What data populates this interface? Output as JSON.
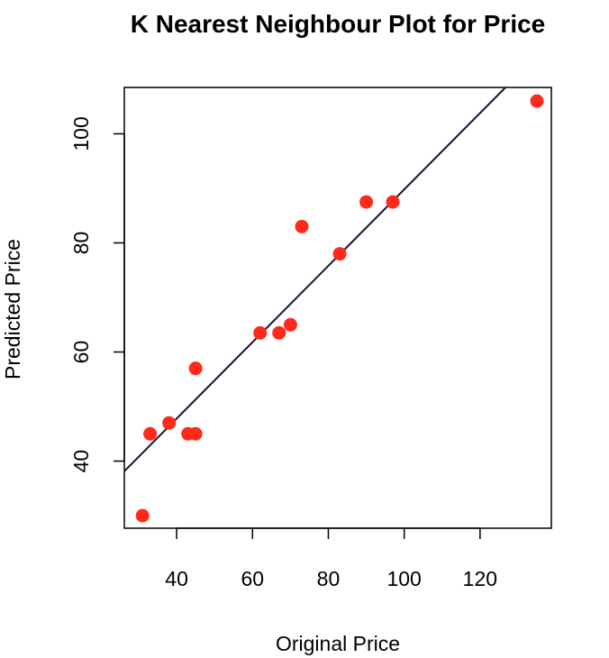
{
  "chart_data": {
    "type": "scatter",
    "title": "K Nearest Neighbour Plot for Price",
    "xlabel": "Original Price",
    "ylabel": "Predicted Price",
    "xlim": [
      26.2,
      138.8
    ],
    "ylim": [
      27.7,
      108.5
    ],
    "x_ticks": [
      40,
      60,
      80,
      100,
      120
    ],
    "y_ticks": [
      40,
      60,
      80,
      100
    ],
    "x_tick_labels": [
      "40",
      "60",
      "80",
      "100",
      "120"
    ],
    "y_tick_labels": [
      "40",
      "60",
      "80",
      "100"
    ],
    "grid": false,
    "legend": "none",
    "point_color": "#ff2a1a",
    "line_color": "#1a1033",
    "points": [
      {
        "x": 31,
        "y": 30
      },
      {
        "x": 33,
        "y": 45
      },
      {
        "x": 38,
        "y": 47
      },
      {
        "x": 43,
        "y": 45
      },
      {
        "x": 45,
        "y": 45
      },
      {
        "x": 45,
        "y": 57
      },
      {
        "x": 62,
        "y": 63.5
      },
      {
        "x": 67,
        "y": 63.5
      },
      {
        "x": 70,
        "y": 65
      },
      {
        "x": 73,
        "y": 83
      },
      {
        "x": 83,
        "y": 78
      },
      {
        "x": 90,
        "y": 87.5
      },
      {
        "x": 97,
        "y": 87.5
      },
      {
        "x": 135,
        "y": 106
      }
    ],
    "fit_line": {
      "slope": 0.7,
      "intercept": 19.8
    }
  }
}
